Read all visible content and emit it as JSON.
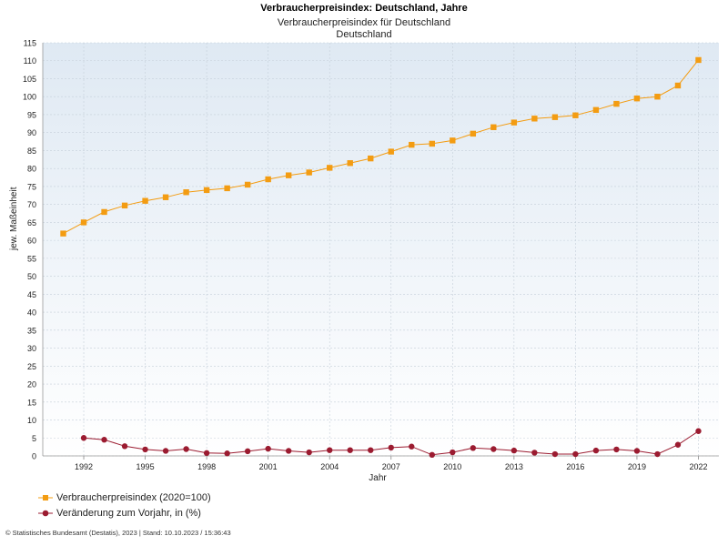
{
  "chart_data": {
    "type": "line",
    "title": "Verbraucherpreisindex: Deutschland, Jahre",
    "subtitle": "Verbraucherpreisindex für Deutschland",
    "subtitle2": "Deutschland",
    "xlabel": "Jahr",
    "ylabel": "jew. Maßeinheit",
    "ylim": [
      0,
      115
    ],
    "yticks": [
      0,
      5,
      10,
      15,
      20,
      25,
      30,
      35,
      40,
      45,
      50,
      55,
      60,
      65,
      70,
      75,
      80,
      85,
      90,
      95,
      100,
      105,
      110,
      115
    ],
    "xlim": [
      1990,
      2023
    ],
    "xticks": [
      1992,
      1995,
      1998,
      2001,
      2004,
      2007,
      2010,
      2013,
      2016,
      2019,
      2022
    ],
    "series": [
      {
        "name": "Verbraucherpreisindex (2020=100)",
        "color": "#f39c12",
        "marker": "square",
        "x": [
          1991,
          1992,
          1993,
          1994,
          1995,
          1996,
          1997,
          1998,
          1999,
          2000,
          2001,
          2002,
          2003,
          2004,
          2005,
          2006,
          2007,
          2008,
          2009,
          2010,
          2011,
          2012,
          2013,
          2014,
          2015,
          2016,
          2017,
          2018,
          2019,
          2020,
          2021,
          2022
        ],
        "values": [
          61.9,
          65.0,
          67.9,
          69.7,
          71.0,
          72.0,
          73.4,
          74.0,
          74.5,
          75.5,
          77.0,
          78.1,
          78.9,
          80.2,
          81.5,
          82.8,
          84.7,
          86.6,
          86.9,
          87.8,
          89.7,
          91.5,
          92.8,
          93.9,
          94.3,
          94.8,
          96.3,
          98.0,
          99.5,
          100.0,
          103.1,
          110.2
        ]
      },
      {
        "name": "Veränderung zum Vorjahr, in (%)",
        "color": "#9b1b30",
        "marker": "circle",
        "x": [
          1992,
          1993,
          1994,
          1995,
          1996,
          1997,
          1998,
          1999,
          2000,
          2001,
          2002,
          2003,
          2004,
          2005,
          2006,
          2007,
          2008,
          2009,
          2010,
          2011,
          2012,
          2013,
          2014,
          2015,
          2016,
          2017,
          2018,
          2019,
          2020,
          2021,
          2022
        ],
        "values": [
          5.0,
          4.5,
          2.7,
          1.8,
          1.4,
          1.9,
          0.8,
          0.7,
          1.3,
          2.0,
          1.4,
          1.0,
          1.6,
          1.6,
          1.6,
          2.3,
          2.6,
          0.3,
          1.0,
          2.2,
          1.9,
          1.5,
          0.9,
          0.5,
          0.5,
          1.5,
          1.8,
          1.4,
          0.5,
          3.1,
          6.9
        ]
      }
    ]
  },
  "footer": {
    "text": "© Statistisches Bundesamt (Destatis), 2023 | Stand: 10.10.2023 / 15:36:43"
  }
}
